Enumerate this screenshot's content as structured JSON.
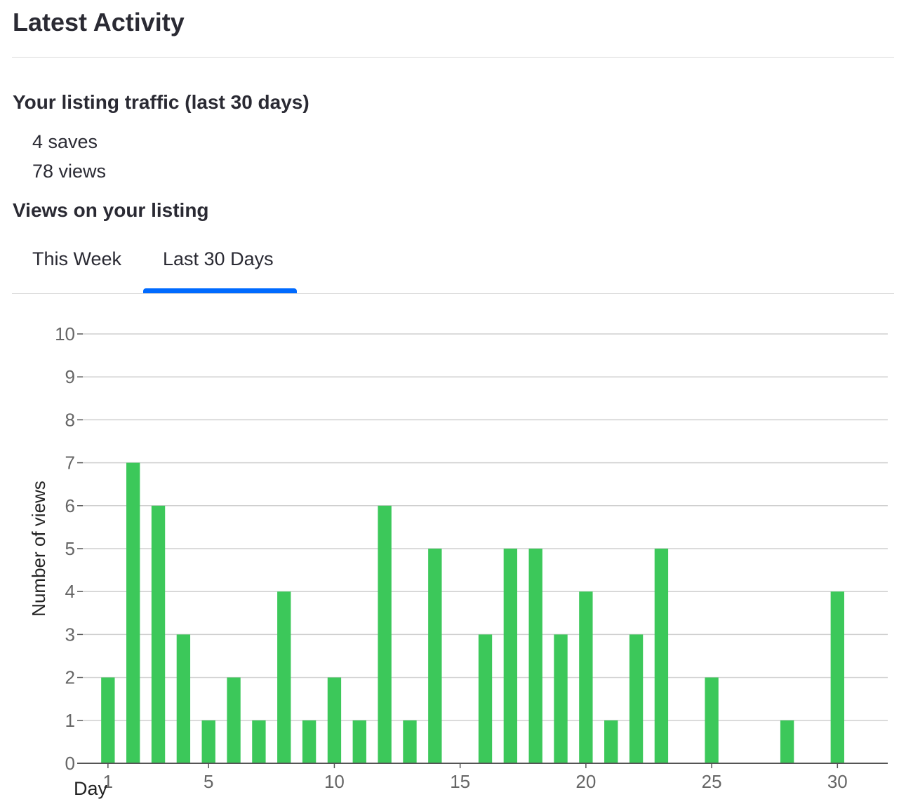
{
  "section": {
    "title": "Latest Activity"
  },
  "traffic": {
    "heading": "Your listing traffic (last 30 days)",
    "saves": "4 saves",
    "views": "78 views"
  },
  "views_chart": {
    "heading": "Views on your listing",
    "tabs": [
      {
        "label": "This Week",
        "active": false
      },
      {
        "label": "Last 30 Days",
        "active": true
      }
    ],
    "accent_color": "#006aff",
    "bar_color": "#3cc85a"
  },
  "chart_data": {
    "type": "bar",
    "title": "",
    "xlabel": "Day",
    "ylabel": "Number of views",
    "xlim": [
      0,
      32
    ],
    "ylim": [
      0,
      10
    ],
    "x_ticks": [
      1,
      5,
      10,
      15,
      20,
      25,
      30
    ],
    "y_ticks": [
      0,
      1,
      2,
      3,
      4,
      5,
      6,
      7,
      8,
      9,
      10
    ],
    "grid": true,
    "x": [
      1,
      2,
      3,
      4,
      5,
      6,
      7,
      8,
      9,
      10,
      11,
      12,
      13,
      14,
      15,
      16,
      17,
      18,
      19,
      20,
      21,
      22,
      23,
      24,
      25,
      26,
      27,
      28,
      29,
      30
    ],
    "values": [
      2,
      7,
      6,
      3,
      1,
      2,
      1,
      4,
      1,
      2,
      1,
      6,
      1,
      5,
      0,
      3,
      5,
      5,
      3,
      4,
      1,
      3,
      5,
      0,
      2,
      0,
      0,
      1,
      0,
      4
    ]
  }
}
